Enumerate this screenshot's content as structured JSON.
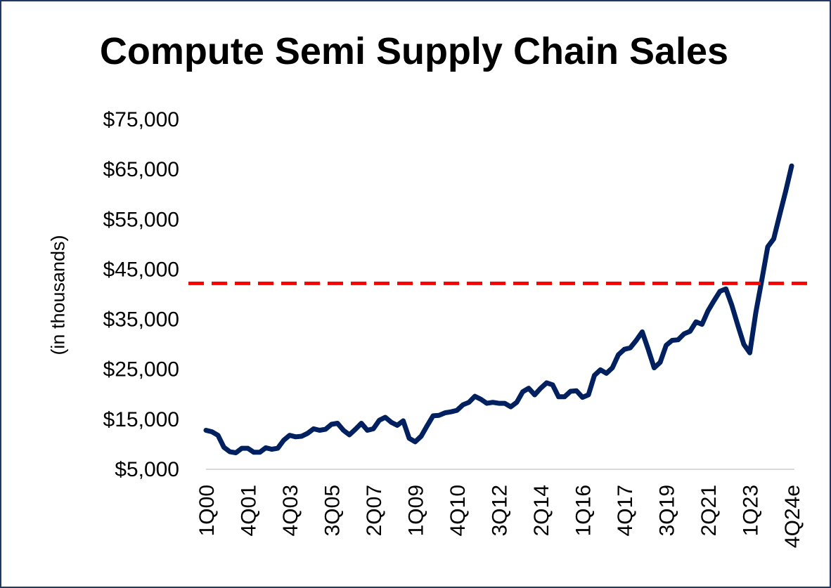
{
  "chart_data": {
    "type": "line",
    "title": "Compute Semi Supply Chain Sales",
    "ylabel": "(in thousands)",
    "xlabel": "",
    "ylim": [
      5000,
      75000
    ],
    "yticks": [
      5000,
      15000,
      25000,
      35000,
      45000,
      55000,
      65000,
      75000
    ],
    "ytick_labels": [
      "$5,000",
      "$15,000",
      "$25,000",
      "$35,000",
      "$45,000",
      "$55,000",
      "$65,000",
      "$75,000"
    ],
    "xtick_labels": [
      "1Q00",
      "4Q01",
      "4Q03",
      "3Q05",
      "2Q07",
      "1Q09",
      "4Q10",
      "3Q12",
      "2Q14",
      "1Q16",
      "4Q17",
      "3Q19",
      "2Q21",
      "1Q23",
      "4Q24e"
    ],
    "grid": false,
    "legend": "none",
    "series": [
      {
        "color": "#002060",
        "values": [
          12800,
          12500,
          11800,
          9400,
          8500,
          8300,
          9200,
          9200,
          8400,
          8400,
          9300,
          9000,
          9200,
          10800,
          11800,
          11500,
          11600,
          12200,
          13100,
          12800,
          13000,
          14000,
          14200,
          12800,
          11900,
          13000,
          14200,
          12800,
          13100,
          14800,
          15400,
          14400,
          13800,
          14700,
          11200,
          10500,
          11600,
          13700,
          15700,
          15800,
          16300,
          16500,
          16800,
          17900,
          18400,
          19600,
          19000,
          18200,
          18400,
          18200,
          18200,
          17500,
          18400,
          20500,
          21200,
          19900,
          21200,
          22300,
          21900,
          19500,
          19500,
          20600,
          20700,
          19400,
          19900,
          23800,
          24900,
          24200,
          25300,
          27900,
          29000,
          29300,
          30800,
          32500,
          29000,
          25300,
          26400,
          29800,
          30800,
          30900,
          32100,
          32600,
          34500,
          34000,
          36700,
          38700,
          40600,
          41100,
          37800,
          33800,
          30000,
          28300,
          36300,
          42800,
          49500,
          51100,
          55900,
          60600,
          65700
        ]
      }
    ],
    "reference_line": {
      "y": 42200,
      "color": "#ff0000",
      "style": "dashed"
    }
  }
}
